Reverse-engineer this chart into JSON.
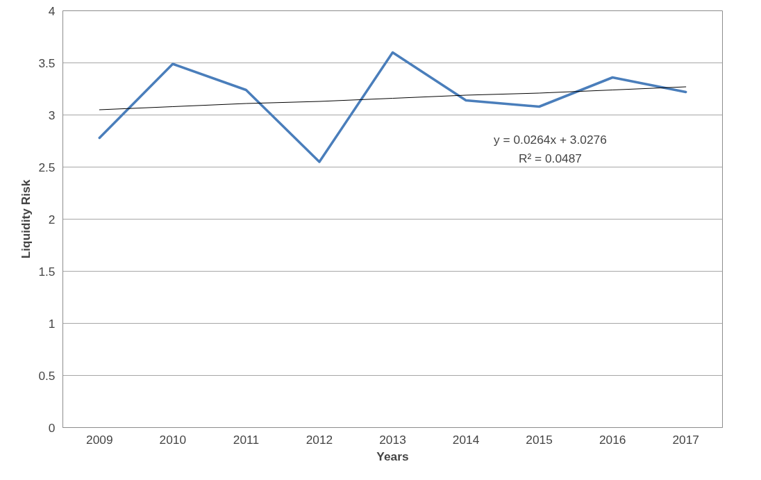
{
  "chart_data": {
    "type": "line",
    "xlabel": "Years",
    "ylabel": "Liquidity Risk",
    "categories": [
      "2009",
      "2010",
      "2011",
      "2012",
      "2013",
      "2014",
      "2015",
      "2016",
      "2017"
    ],
    "series": [
      {
        "color": "#4a7ebb",
        "values": [
          2.78,
          3.49,
          3.24,
          2.55,
          3.6,
          3.14,
          3.08,
          3.36,
          3.22
        ]
      },
      {
        "type": "line",
        "color": "#000000",
        "values": [
          3.05,
          3.08,
          3.11,
          3.13,
          3.16,
          3.19,
          3.21,
          3.24,
          3.27
        ]
      }
    ],
    "ylim": [
      0,
      4
    ],
    "yticks": [
      0,
      0.5,
      1,
      1.5,
      2,
      2.5,
      3,
      3.5,
      4
    ],
    "grid": "y",
    "annotations": [
      "y = 0.0264x + 3.0276",
      "R² = 0.0487"
    ]
  }
}
